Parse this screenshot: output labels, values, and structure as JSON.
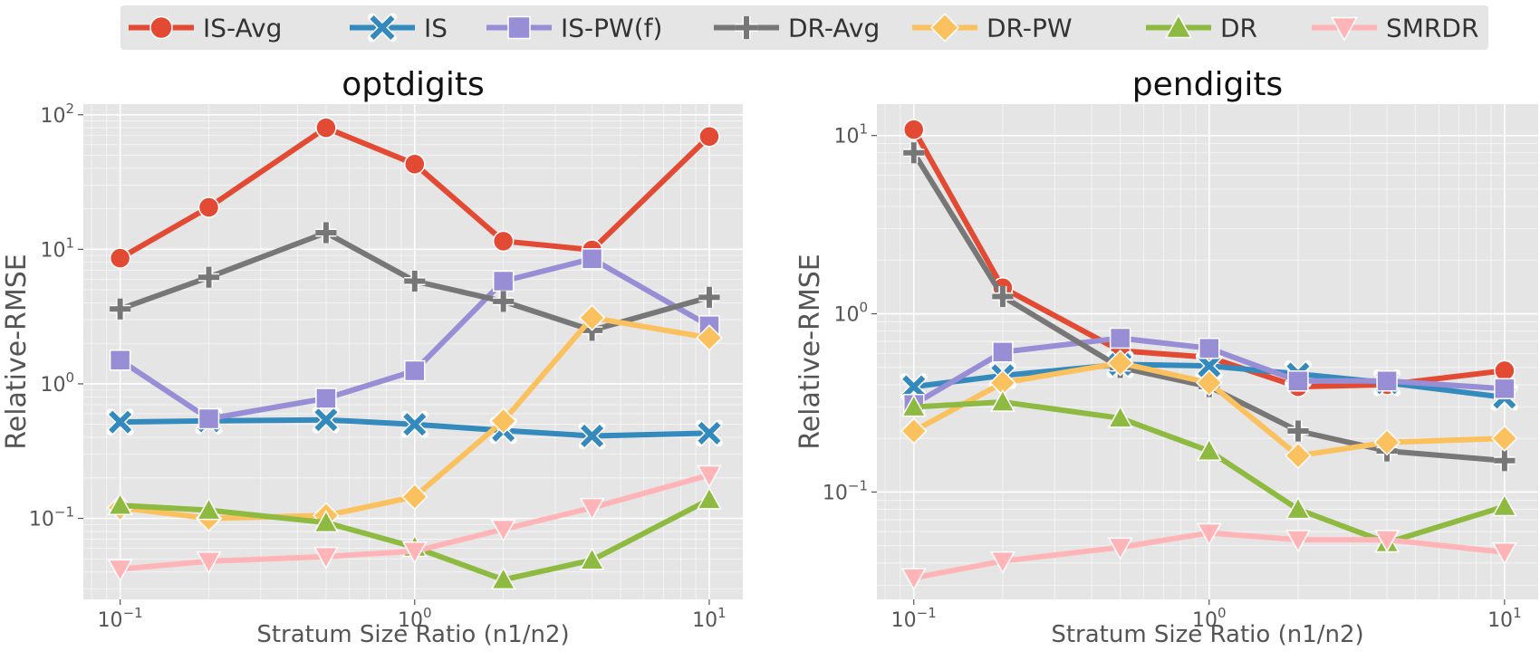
{
  "legend": {
    "entries": [
      {
        "name": "IS-Avg",
        "color": "#E24A33",
        "marker": "circle"
      },
      {
        "name": "IS",
        "color": "#348ABD",
        "marker": "x"
      },
      {
        "name": "IS-PW(f)",
        "color": "#988ED5",
        "marker": "square"
      },
      {
        "name": "DR-Avg",
        "color": "#777777",
        "marker": "plus"
      },
      {
        "name": "DR-PW",
        "color": "#FBC15E",
        "marker": "diamond"
      },
      {
        "name": "DR",
        "color": "#8EBA42",
        "marker": "triangle-up"
      },
      {
        "name": "SMRDR",
        "color": "#FFB5B8",
        "marker": "triangle-down"
      }
    ]
  },
  "chart_data": [
    {
      "type": "line",
      "title": "optdigits",
      "xlabel": "Stratum Size Ratio (n1/n2)",
      "ylabel": "Relative-RMSE",
      "xscale": "log",
      "yscale": "log",
      "xlim": [
        0.075,
        13
      ],
      "ylim": [
        0.025,
        120
      ],
      "xticks": [
        {
          "value": 0.1,
          "base": "10",
          "exp": "−1"
        },
        {
          "value": 1,
          "base": "10",
          "exp": "0"
        },
        {
          "value": 10,
          "base": "10",
          "exp": "1"
        }
      ],
      "yticks": [
        {
          "value": 0.1,
          "base": "10",
          "exp": "−1"
        },
        {
          "value": 1,
          "base": "10",
          "exp": "0"
        },
        {
          "value": 10,
          "base": "10",
          "exp": "1"
        },
        {
          "value": 100,
          "base": "10",
          "exp": "2"
        }
      ],
      "x": [
        0.1,
        0.2,
        0.5,
        1,
        2,
        4,
        10
      ],
      "series": [
        {
          "name": "IS-Avg",
          "values": [
            8.6,
            20.5,
            80,
            43,
            11.5,
            9.9,
            69
          ]
        },
        {
          "name": "IS",
          "values": [
            0.52,
            0.53,
            0.54,
            0.5,
            0.45,
            0.41,
            0.43
          ]
        },
        {
          "name": "IS-PW(f)",
          "values": [
            1.5,
            0.55,
            0.78,
            1.25,
            5.8,
            8.5,
            2.7
          ]
        },
        {
          "name": "DR-Avg",
          "values": [
            3.6,
            6.2,
            13.3,
            5.8,
            4.1,
            2.5,
            4.4
          ]
        },
        {
          "name": "DR-PW",
          "values": [
            0.12,
            0.1,
            0.105,
            0.145,
            0.53,
            3.1,
            2.2
          ]
        },
        {
          "name": "DR",
          "values": [
            0.125,
            0.115,
            0.093,
            0.061,
            0.035,
            0.049,
            0.138
          ]
        },
        {
          "name": "SMRDR",
          "values": [
            0.042,
            0.048,
            0.052,
            0.057,
            0.083,
            0.12,
            0.21
          ]
        }
      ]
    },
    {
      "type": "line",
      "title": "pendigits",
      "xlabel": "Stratum Size Ratio (n1/n2)",
      "ylabel": "Relative-RMSE",
      "xscale": "log",
      "yscale": "log",
      "xlim": [
        0.075,
        13
      ],
      "ylim": [
        0.025,
        15
      ],
      "xticks": [
        {
          "value": 0.1,
          "base": "10",
          "exp": "−1"
        },
        {
          "value": 1,
          "base": "10",
          "exp": "0"
        },
        {
          "value": 10,
          "base": "10",
          "exp": "1"
        }
      ],
      "yticks": [
        {
          "value": 0.1,
          "base": "10",
          "exp": "−1"
        },
        {
          "value": 1,
          "base": "10",
          "exp": "0"
        },
        {
          "value": 10,
          "base": "10",
          "exp": "1"
        }
      ],
      "x": [
        0.1,
        0.2,
        0.5,
        1,
        2,
        4,
        10
      ],
      "series": [
        {
          "name": "IS-Avg",
          "values": [
            10.8,
            1.4,
            0.62,
            0.57,
            0.39,
            0.4,
            0.48
          ]
        },
        {
          "name": "IS",
          "values": [
            0.39,
            0.45,
            0.52,
            0.51,
            0.46,
            0.41,
            0.34
          ]
        },
        {
          "name": "IS-PW(f)",
          "values": [
            0.31,
            0.61,
            0.73,
            0.64,
            0.42,
            0.42,
            0.38
          ]
        },
        {
          "name": "DR-Avg",
          "values": [
            8.0,
            1.25,
            0.5,
            0.39,
            0.22,
            0.17,
            0.15
          ]
        },
        {
          "name": "DR-PW",
          "values": [
            0.22,
            0.41,
            0.53,
            0.41,
            0.16,
            0.19,
            0.2
          ]
        },
        {
          "name": "DR",
          "values": [
            0.3,
            0.32,
            0.26,
            0.17,
            0.08,
            0.052,
            0.083
          ]
        },
        {
          "name": "SMRDR",
          "values": [
            0.033,
            0.041,
            0.049,
            0.059,
            0.054,
            0.054,
            0.046
          ]
        }
      ]
    }
  ]
}
